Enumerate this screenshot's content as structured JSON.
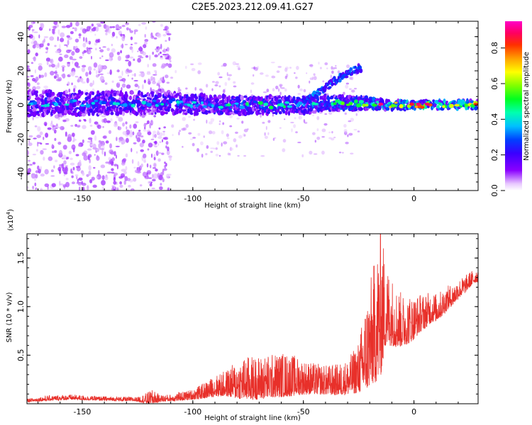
{
  "title": "C2E5.2023.212.09.41.G27",
  "chart_data": [
    {
      "type": "heatmap",
      "xlabel": "Height of straight line (km)",
      "ylabel": "Frequency (Hz)",
      "xlim": [
        -175,
        29
      ],
      "ylim": [
        -50,
        49
      ],
      "xticks": [
        -150,
        -100,
        -50,
        0
      ],
      "yticks": [
        -40,
        -20,
        0,
        20,
        40
      ],
      "colorbar": {
        "label": "Normalized spectral amplitude",
        "range": [
          0.0,
          0.95
        ],
        "ticks": [
          0.0,
          0.2,
          0.4,
          0.6,
          0.8
        ],
        "colormap": "rainbow (white-violet-blue-cyan-green-yellow-orange-red-magenta)"
      },
      "ridge": [
        {
          "x": -170,
          "center": 1,
          "width": 14,
          "amp": 0.3
        },
        {
          "x": -150,
          "center": 1,
          "width": 14,
          "amp": 0.32
        },
        {
          "x": -130,
          "center": 1,
          "width": 13,
          "amp": 0.3
        },
        {
          "x": -110,
          "center": 1,
          "width": 12,
          "amp": 0.33
        },
        {
          "x": -90,
          "center": 0,
          "width": 11,
          "amp": 0.34
        },
        {
          "x": -70,
          "center": 0,
          "width": 10,
          "amp": 0.36
        },
        {
          "x": -50,
          "center": 0,
          "width": 10,
          "amp": 0.37
        },
        {
          "x": -40,
          "center": 1,
          "width": 9,
          "amp": 0.38
        },
        {
          "x": -30,
          "center": 1,
          "width": 8,
          "amp": 0.42
        },
        {
          "x": -20,
          "center": 1,
          "width": 7,
          "amp": 0.45
        },
        {
          "x": -10,
          "center": 0,
          "width": 5,
          "amp": 0.55
        },
        {
          "x": 0,
          "center": 0,
          "width": 5,
          "amp": 0.65
        },
        {
          "x": 10,
          "center": 0,
          "width": 5,
          "amp": 0.62
        },
        {
          "x": 20,
          "center": 0,
          "width": 5,
          "amp": 0.55
        },
        {
          "x": 28,
          "center": 0,
          "width": 5,
          "amp": 0.5
        }
      ],
      "secondary_branch": [
        {
          "x": -50,
          "center": 3
        },
        {
          "x": -42,
          "center": 8
        },
        {
          "x": -36,
          "center": 14
        },
        {
          "x": -30,
          "center": 18
        },
        {
          "x": -24,
          "center": 22
        }
      ],
      "scatter_band": {
        "x_range": [
          -175,
          -110
        ],
        "freq_range": [
          -50,
          49
        ]
      }
    },
    {
      "type": "line",
      "xlabel": "Height of straight line (km)",
      "ylabel": "SNR (10 * v/v)",
      "multiplier": "(x10",
      "multiplier_exp": "4",
      "multiplier_close": ")",
      "xlim": [
        -175,
        29
      ],
      "ylim": [
        0,
        17500
      ],
      "xticks": [
        -150,
        -100,
        -50,
        0
      ],
      "yticks": [
        5000,
        10000,
        15000
      ],
      "ytick_labels": [
        "0.5",
        "1.0",
        "1.5"
      ],
      "color": "#e8302a",
      "series": [
        {
          "x": [
            -175,
            -165,
            -155,
            -145,
            -135,
            -125,
            -118,
            -115,
            -110,
            -100,
            -95,
            -90,
            -85,
            -80,
            -75,
            -70,
            -65,
            -60,
            -55,
            -50,
            -45,
            -40,
            -35,
            -30,
            -25,
            -22,
            -20,
            -18,
            -16,
            -15,
            -13,
            -10,
            -8,
            -5,
            -2,
            0,
            3,
            5,
            8,
            10,
            13,
            15,
            18,
            20,
            23,
            25,
            28,
            29
          ],
          "baseline": [
            300,
            500,
            600,
            500,
            450,
            400,
            400,
            450,
            500,
            800,
            1100,
            1500,
            1700,
            1900,
            2000,
            2000,
            2200,
            2300,
            2300,
            2200,
            2100,
            2000,
            2000,
            2200,
            3000,
            4500,
            5500,
            6500,
            7500,
            8500,
            9000,
            8500,
            8000,
            7800,
            8000,
            8200,
            8800,
            9000,
            9500,
            9500,
            10000,
            10500,
            11000,
            11500,
            12000,
            12500,
            13000,
            13000
          ],
          "noise": [
            200,
            300,
            300,
            250,
            250,
            250,
            900,
            400,
            400,
            600,
            900,
            1200,
            1500,
            2200,
            2500,
            2500,
            2500,
            2600,
            2400,
            2000,
            1800,
            1700,
            1800,
            2000,
            3000,
            5000,
            6000,
            7000,
            8000,
            9000,
            5000,
            4000,
            3500,
            3000,
            2800,
            2500,
            2200,
            2000,
            1800,
            1600,
            1500,
            1400,
            1200,
            1100,
            1000,
            900,
            800,
            800
          ]
        }
      ]
    }
  ]
}
